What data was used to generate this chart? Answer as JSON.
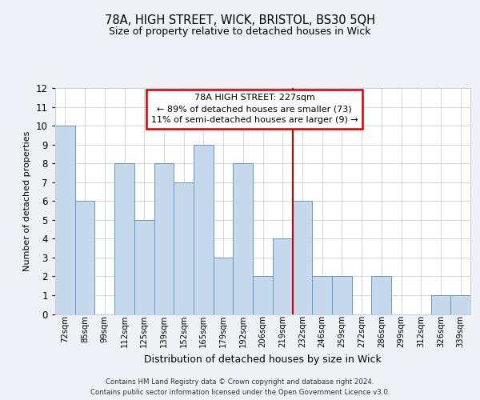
{
  "title1": "78A, HIGH STREET, WICK, BRISTOL, BS30 5QH",
  "title2": "Size of property relative to detached houses in Wick",
  "xlabel": "Distribution of detached houses by size in Wick",
  "ylabel": "Number of detached properties",
  "categories": [
    "72sqm",
    "85sqm",
    "99sqm",
    "112sqm",
    "125sqm",
    "139sqm",
    "152sqm",
    "165sqm",
    "179sqm",
    "192sqm",
    "206sqm",
    "219sqm",
    "232sqm",
    "246sqm",
    "259sqm",
    "272sqm",
    "286sqm",
    "299sqm",
    "312sqm",
    "326sqm",
    "339sqm"
  ],
  "values": [
    10,
    6,
    0,
    8,
    5,
    8,
    7,
    9,
    3,
    8,
    2,
    4,
    6,
    2,
    2,
    0,
    2,
    0,
    0,
    1,
    1
  ],
  "bar_color": "#c6d9ec",
  "bar_edge_color": "#6699bb",
  "annotation_text": "78A HIGH STREET: 227sqm\n← 89% of detached houses are smaller (73)\n11% of semi-detached houses are larger (9) →",
  "annotation_box_color": "#ffffff",
  "annotation_box_edge_color": "#cc0000",
  "vline_color": "#cc0000",
  "ylim": [
    0,
    12
  ],
  "yticks": [
    0,
    1,
    2,
    3,
    4,
    5,
    6,
    7,
    8,
    9,
    10,
    11,
    12
  ],
  "footer": "Contains HM Land Registry data © Crown copyright and database right 2024.\nContains public sector information licensed under the Open Government Licence v3.0.",
  "background_color": "#eef2f7",
  "plot_background_color": "#ffffff",
  "grid_color": "#c8d0d8"
}
